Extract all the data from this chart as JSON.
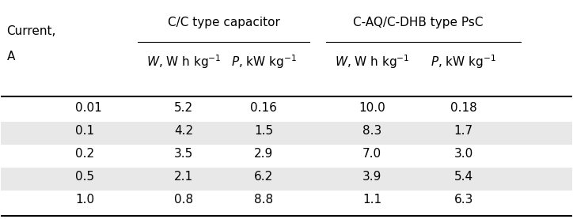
{
  "col_header_top": [
    "C/C type capacitor",
    "C-AQ/C-DHB type PsC"
  ],
  "col_header_sub": [
    "W, W h kg⁻¹",
    "P, kW kg⁻¹",
    "W, W h kg⁻¹",
    "P, kW kg⁻¹"
  ],
  "row_header_label": [
    "Current,",
    "A"
  ],
  "rows": [
    [
      "0.01",
      "5.2",
      "0.16",
      "10.0",
      "0.18"
    ],
    [
      "0.1",
      "4.2",
      "1.5",
      "8.3",
      "1.7"
    ],
    [
      "0.2",
      "3.5",
      "2.9",
      "7.0",
      "3.0"
    ],
    [
      "0.5",
      "2.1",
      "6.2",
      "3.9",
      "5.4"
    ],
    [
      "1.0",
      "0.8",
      "8.8",
      "1.1",
      "6.3"
    ]
  ],
  "shaded_rows": [
    1,
    3
  ],
  "shade_color": "#e8e8e8",
  "background_color": "#ffffff",
  "text_color": "#000000",
  "font_size": 11,
  "header_font_size": 11
}
